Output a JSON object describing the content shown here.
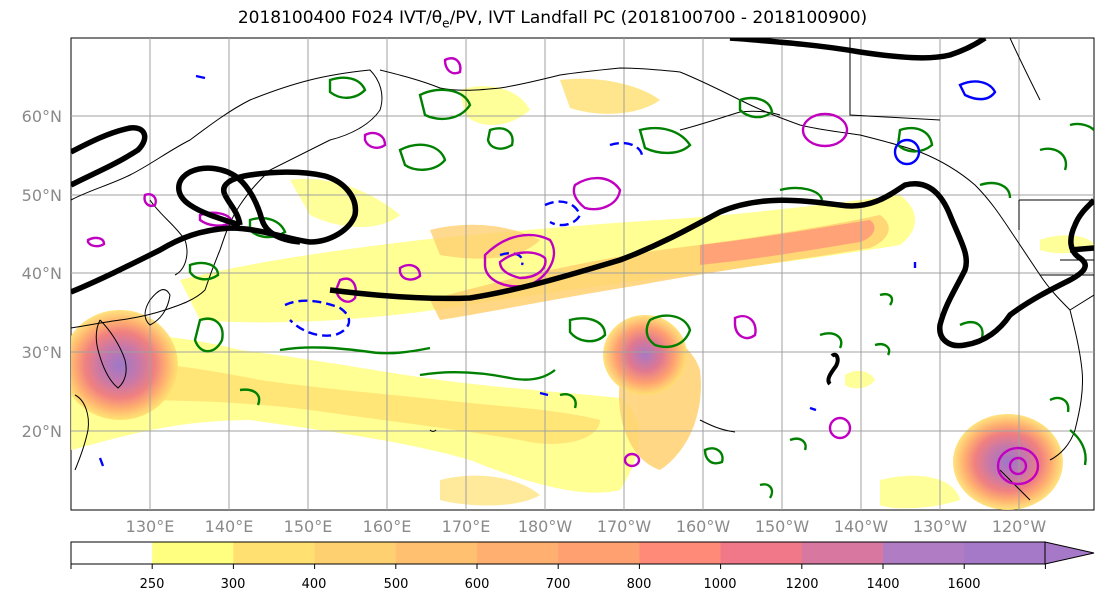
{
  "figure": {
    "title_prefix": "2018100400 F024 IVT/θ",
    "title_sub": "e",
    "title_suffix": "/PV, IVT Landfall PC (2018100700 - 2018100900)"
  },
  "map": {
    "lat_labels": [
      "60°N",
      "50°N",
      "40°N",
      "30°N",
      "20°N"
    ],
    "lon_labels": [
      "130°E",
      "140°E",
      "150°E",
      "160°E",
      "170°E",
      "180°W",
      "170°W",
      "160°W",
      "150°W",
      "140°W",
      "130°W",
      "120°W"
    ]
  },
  "colorbar": {
    "levels": [
      "250",
      "300",
      "400",
      "500",
      "600",
      "700",
      "800",
      "1000",
      "1200",
      "1400",
      "1600"
    ],
    "colors": [
      "#ffffff",
      "#ffff80",
      "#ffe070",
      "#ffd070",
      "#ffc070",
      "#ffb070",
      "#ffa070",
      "#ff8a78",
      "#f07888",
      "#d878a0",
      "#b07cc4",
      "#a678c8"
    ]
  },
  "contour_colors": {
    "ivt_fill": "#ffd070",
    "theta_e": "#008000",
    "pv_negative": "#0000ff",
    "pv_positive": "#c000c0",
    "landfall_pc": "#000000"
  }
}
